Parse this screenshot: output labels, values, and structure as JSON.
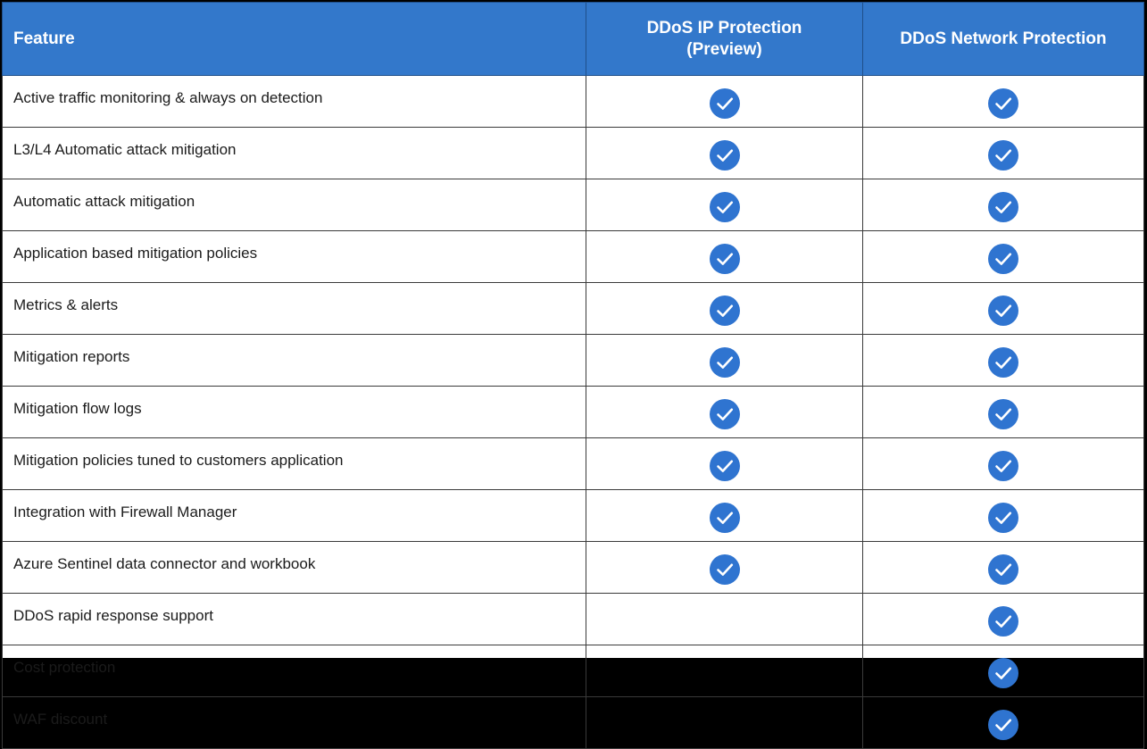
{
  "table": {
    "headers": {
      "feature": "Feature",
      "ip_protection_line1": "DDoS IP Protection",
      "ip_protection_line2": "(Preview)",
      "network_protection": "DDoS Network Protection"
    },
    "rows": [
      {
        "feature": "Active traffic monitoring & always on detection",
        "ip_protection": true,
        "network_protection": true
      },
      {
        "feature": "L3/L4 Automatic attack mitigation",
        "ip_protection": true,
        "network_protection": true
      },
      {
        "feature": "Automatic attack mitigation",
        "ip_protection": true,
        "network_protection": true
      },
      {
        "feature": "Application based mitigation policies",
        "ip_protection": true,
        "network_protection": true
      },
      {
        "feature": "Metrics & alerts",
        "ip_protection": true,
        "network_protection": true
      },
      {
        "feature": "Mitigation reports",
        "ip_protection": true,
        "network_protection": true
      },
      {
        "feature": "Mitigation flow logs",
        "ip_protection": true,
        "network_protection": true
      },
      {
        "feature": "Mitigation policies tuned to customers application",
        "ip_protection": true,
        "network_protection": true
      },
      {
        "feature": "Integration with Firewall Manager",
        "ip_protection": true,
        "network_protection": true
      },
      {
        "feature": "Azure Sentinel data connector and workbook",
        "ip_protection": true,
        "network_protection": true
      },
      {
        "feature": "DDoS rapid response support",
        "ip_protection": false,
        "network_protection": true
      },
      {
        "feature": "Cost protection",
        "ip_protection": false,
        "network_protection": true
      },
      {
        "feature": "WAF discount",
        "ip_protection": false,
        "network_protection": true
      }
    ]
  },
  "icons": {
    "included": "check-circle-icon"
  },
  "colors": {
    "header_background": "#3378cb",
    "check_circle": "#2f74d0",
    "check_mark": "#ffffff"
  }
}
